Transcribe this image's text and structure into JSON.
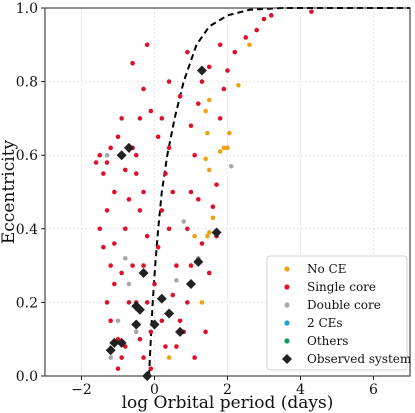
{
  "chart_data": {
    "type": "scatter",
    "xlabel": "log Orbital period (days)",
    "ylabel": "Eccentricity",
    "xlim": [
      -3,
      7
    ],
    "ylim": [
      0,
      1.0
    ],
    "xticks": [
      -2,
      0,
      2,
      4,
      6
    ],
    "yticks": [
      0.0,
      0.2,
      0.4,
      0.6,
      0.8,
      1.0
    ],
    "xtick_labels": [
      "−2",
      "0",
      "2",
      "4",
      "6"
    ],
    "ytick_labels": [
      "0.0",
      "0.2",
      "0.4",
      "0.6",
      "0.8",
      "1.0"
    ],
    "grid": true,
    "legend_position": "bottom-right",
    "colors": {
      "no_ce": "#f0a20c",
      "single_core": "#e0102a",
      "double_core": "#a7a7b0",
      "two_ces": "#1aa2d6",
      "others": "#129d63",
      "observed": "#222222",
      "curve": "#000000"
    },
    "curve": {
      "name": "",
      "style": "dashed",
      "points": [
        [
          -0.15,
          0.0
        ],
        [
          -0.1,
          0.1
        ],
        [
          -0.05,
          0.2
        ],
        [
          0.02,
          0.3
        ],
        [
          0.1,
          0.4
        ],
        [
          0.2,
          0.5
        ],
        [
          0.35,
          0.6
        ],
        [
          0.55,
          0.7
        ],
        [
          0.8,
          0.8
        ],
        [
          1.15,
          0.9
        ],
        [
          1.5,
          0.95
        ],
        [
          2.0,
          0.98
        ],
        [
          2.6,
          0.995
        ],
        [
          3.5,
          1.0
        ],
        [
          7.0,
          1.0
        ]
      ]
    },
    "series": [
      {
        "name": "No CE",
        "marker": "circle",
        "color_key": "no_ce",
        "points": [
          [
            0.4,
            0.05
          ],
          [
            1.1,
            0.38
          ],
          [
            1.3,
            0.2
          ],
          [
            1.4,
            0.72
          ],
          [
            1.5,
            0.75
          ],
          [
            1.45,
            0.66
          ],
          [
            1.4,
            0.59
          ],
          [
            1.5,
            0.56
          ],
          [
            1.6,
            0.43
          ],
          [
            1.5,
            0.39
          ],
          [
            1.45,
            0.38
          ],
          [
            1.8,
            0.61
          ],
          [
            1.9,
            0.62
          ],
          [
            2.0,
            0.62
          ],
          [
            2.05,
            0.66
          ],
          [
            2.3,
            0.79
          ],
          [
            2.6,
            0.9
          ]
        ]
      },
      {
        "name": "Single core",
        "marker": "circle",
        "color_key": "single_core",
        "points": [
          [
            -1.5,
            0.6
          ],
          [
            -1.4,
            0.55
          ],
          [
            -1.3,
            0.58
          ],
          [
            -1.2,
            0.62
          ],
          [
            -1.1,
            0.5
          ],
          [
            -1.3,
            0.45
          ],
          [
            -1.5,
            0.4
          ],
          [
            -1.4,
            0.35
          ],
          [
            -1.2,
            0.3
          ],
          [
            -1.1,
            0.25
          ],
          [
            -1.3,
            0.2
          ],
          [
            -1.2,
            0.15
          ],
          [
            -1.0,
            0.1
          ],
          [
            -0.9,
            0.05
          ],
          [
            -1.0,
            0.02
          ],
          [
            -0.8,
            0.08
          ],
          [
            -0.7,
            0.2
          ],
          [
            -0.6,
            0.3
          ],
          [
            -0.8,
            0.4
          ],
          [
            -0.7,
            0.48
          ],
          [
            -0.5,
            0.55
          ],
          [
            -0.6,
            0.62
          ],
          [
            -0.4,
            0.7
          ],
          [
            -0.5,
            0.6
          ],
          [
            -0.3,
            0.5
          ],
          [
            -0.4,
            0.45
          ],
          [
            -0.2,
            0.38
          ],
          [
            -0.3,
            0.3
          ],
          [
            -0.2,
            0.2
          ],
          [
            -0.1,
            0.12
          ],
          [
            -0.3,
            0.05
          ],
          [
            -0.1,
            0.02
          ],
          [
            0.0,
            0.25
          ],
          [
            0.1,
            0.35
          ],
          [
            0.2,
            0.45
          ],
          [
            0.3,
            0.55
          ],
          [
            0.1,
            0.65
          ],
          [
            0.2,
            0.7
          ],
          [
            0.4,
            0.62
          ],
          [
            0.5,
            0.5
          ],
          [
            0.4,
            0.4
          ],
          [
            0.6,
            0.3
          ],
          [
            0.5,
            0.22
          ],
          [
            0.7,
            0.15
          ],
          [
            0.6,
            0.08
          ],
          [
            0.8,
            0.12
          ],
          [
            0.9,
            0.2
          ],
          [
            1.0,
            0.3
          ],
          [
            0.9,
            0.4
          ],
          [
            1.0,
            0.5
          ],
          [
            1.1,
            0.6
          ],
          [
            1.0,
            0.68
          ],
          [
            1.2,
            0.74
          ],
          [
            1.3,
            0.8
          ],
          [
            1.2,
            0.48
          ],
          [
            1.3,
            0.36
          ],
          [
            1.5,
            0.28
          ],
          [
            1.6,
            0.46
          ],
          [
            1.7,
            0.52
          ],
          [
            1.8,
            0.7
          ],
          [
            1.9,
            0.78
          ],
          [
            2.0,
            0.83
          ],
          [
            2.2,
            0.88
          ],
          [
            2.5,
            0.92
          ],
          [
            2.8,
            0.94
          ],
          [
            3.0,
            0.97
          ],
          [
            3.2,
            0.98
          ],
          [
            4.3,
            0.99
          ],
          [
            -0.6,
            0.85
          ],
          [
            -0.3,
            0.78
          ],
          [
            -0.1,
            0.72
          ],
          [
            0.4,
            0.8
          ],
          [
            0.7,
            0.76
          ],
          [
            -0.9,
            0.7
          ],
          [
            -1.0,
            0.65
          ],
          [
            -1.6,
            0.58
          ],
          [
            -0.2,
            0.9
          ],
          [
            0.9,
            0.88
          ],
          [
            1.5,
            0.84
          ],
          [
            1.8,
            0.9
          ],
          [
            -0.5,
            0.2
          ],
          [
            -0.4,
            0.1
          ],
          [
            0.2,
            0.15
          ],
          [
            0.3,
            0.08
          ],
          [
            1.1,
            0.05
          ],
          [
            1.4,
            0.12
          ],
          [
            1.7,
            0.38
          ],
          [
            -1.1,
            0.36
          ],
          [
            -0.9,
            0.28
          ],
          [
            -0.8,
            0.56
          ]
        ]
      },
      {
        "name": "Double core",
        "marker": "circle",
        "color_key": "double_core",
        "points": [
          [
            -1.2,
            0.05
          ],
          [
            -1.0,
            0.15
          ],
          [
            -0.8,
            0.32
          ],
          [
            -0.7,
            0.25
          ],
          [
            -0.5,
            0.12
          ],
          [
            0.6,
            0.26
          ],
          [
            1.2,
            0.32
          ],
          [
            2.1,
            0.57
          ],
          [
            -1.3,
            0.6
          ],
          [
            0.8,
            0.42
          ]
        ]
      },
      {
        "name": "2 CEs",
        "marker": "circle",
        "color_key": "two_ces",
        "points": []
      },
      {
        "name": "Others",
        "marker": "circle",
        "color_key": "others",
        "points": []
      },
      {
        "name": "Observed system",
        "marker": "diamond",
        "color_key": "observed",
        "points": [
          [
            -1.2,
            0.07
          ],
          [
            -1.1,
            0.09
          ],
          [
            -0.9,
            0.09
          ],
          [
            -0.5,
            0.14
          ],
          [
            -0.4,
            0.18
          ],
          [
            -0.2,
            0.0
          ],
          [
            0.0,
            0.14
          ],
          [
            0.2,
            0.21
          ],
          [
            0.4,
            0.17
          ],
          [
            0.7,
            0.12
          ],
          [
            -0.3,
            0.28
          ],
          [
            -0.9,
            0.6
          ],
          [
            -0.7,
            0.62
          ],
          [
            1.0,
            0.25
          ],
          [
            1.2,
            0.31
          ],
          [
            1.7,
            0.39
          ],
          [
            1.3,
            0.83
          ],
          [
            -0.5,
            0.19
          ]
        ]
      }
    ]
  }
}
